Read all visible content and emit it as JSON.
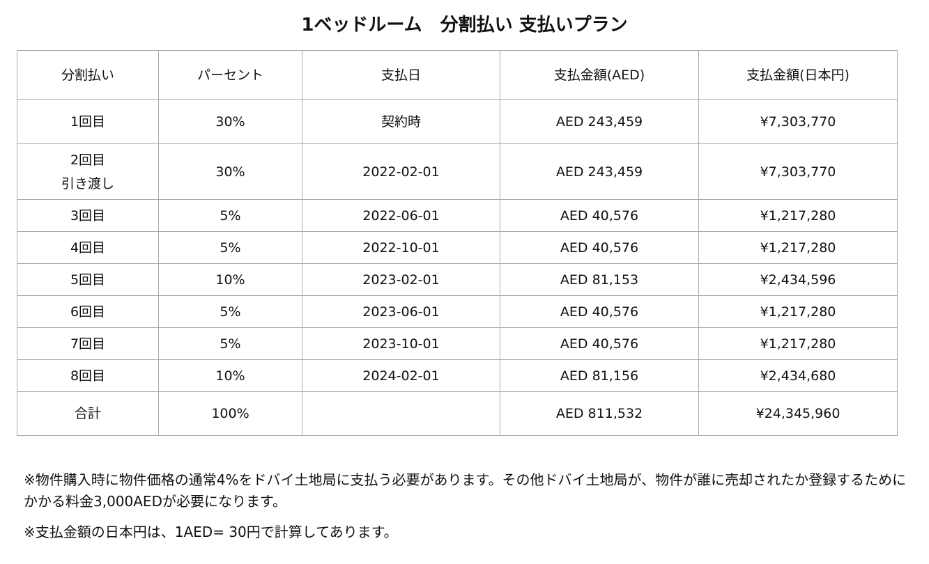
{
  "title": "1ベッドルーム　分割払い 支払いプラン",
  "table": {
    "header": [
      "分割払い",
      "パーセント",
      "支払日",
      "支払金額(AED)",
      "支払金額(日本円)"
    ],
    "rows": [
      [
        "1回目",
        "30%",
        "契約時",
        "AED 243,459",
        "¥7,303,770"
      ],
      [
        "2回目\n引き渡し",
        "30%",
        "2022-02-01",
        "AED 243,459",
        "¥7,303,770"
      ],
      [
        "3回目",
        "5%",
        "2022-06-01",
        "AED 40,576",
        "¥1,217,280"
      ],
      [
        "4回目",
        "5%",
        "2022-10-01",
        "AED 40,576",
        "¥1,217,280"
      ],
      [
        "5回目",
        "10%",
        "2023-02-01",
        "AED 81,153",
        "¥2,434,596"
      ],
      [
        "6回目",
        "5%",
        "2023-06-01",
        "AED 40,576",
        "¥1,217,280"
      ],
      [
        "7回目",
        "5%",
        "2023-10-01",
        "AED 40,576",
        "¥1,217,280"
      ],
      [
        "8回目",
        "10%",
        "2024-02-01",
        "AED 81,156",
        "¥2,434,680"
      ],
      [
        "合計",
        "100%",
        null,
        "AED 811,532",
        "¥24,345,960"
      ]
    ]
  },
  "notes": [
    "※物件購入時に物件価格の通常4%をドバイ土地局に支払う必要があります。その他ドバイ土地局が、物件が誰に売却されたか登録するためにかかる料金3,000AEDが必要になります。",
    "※支払金額の日本円は、1AED= 30円で計算してあります。"
  ]
}
